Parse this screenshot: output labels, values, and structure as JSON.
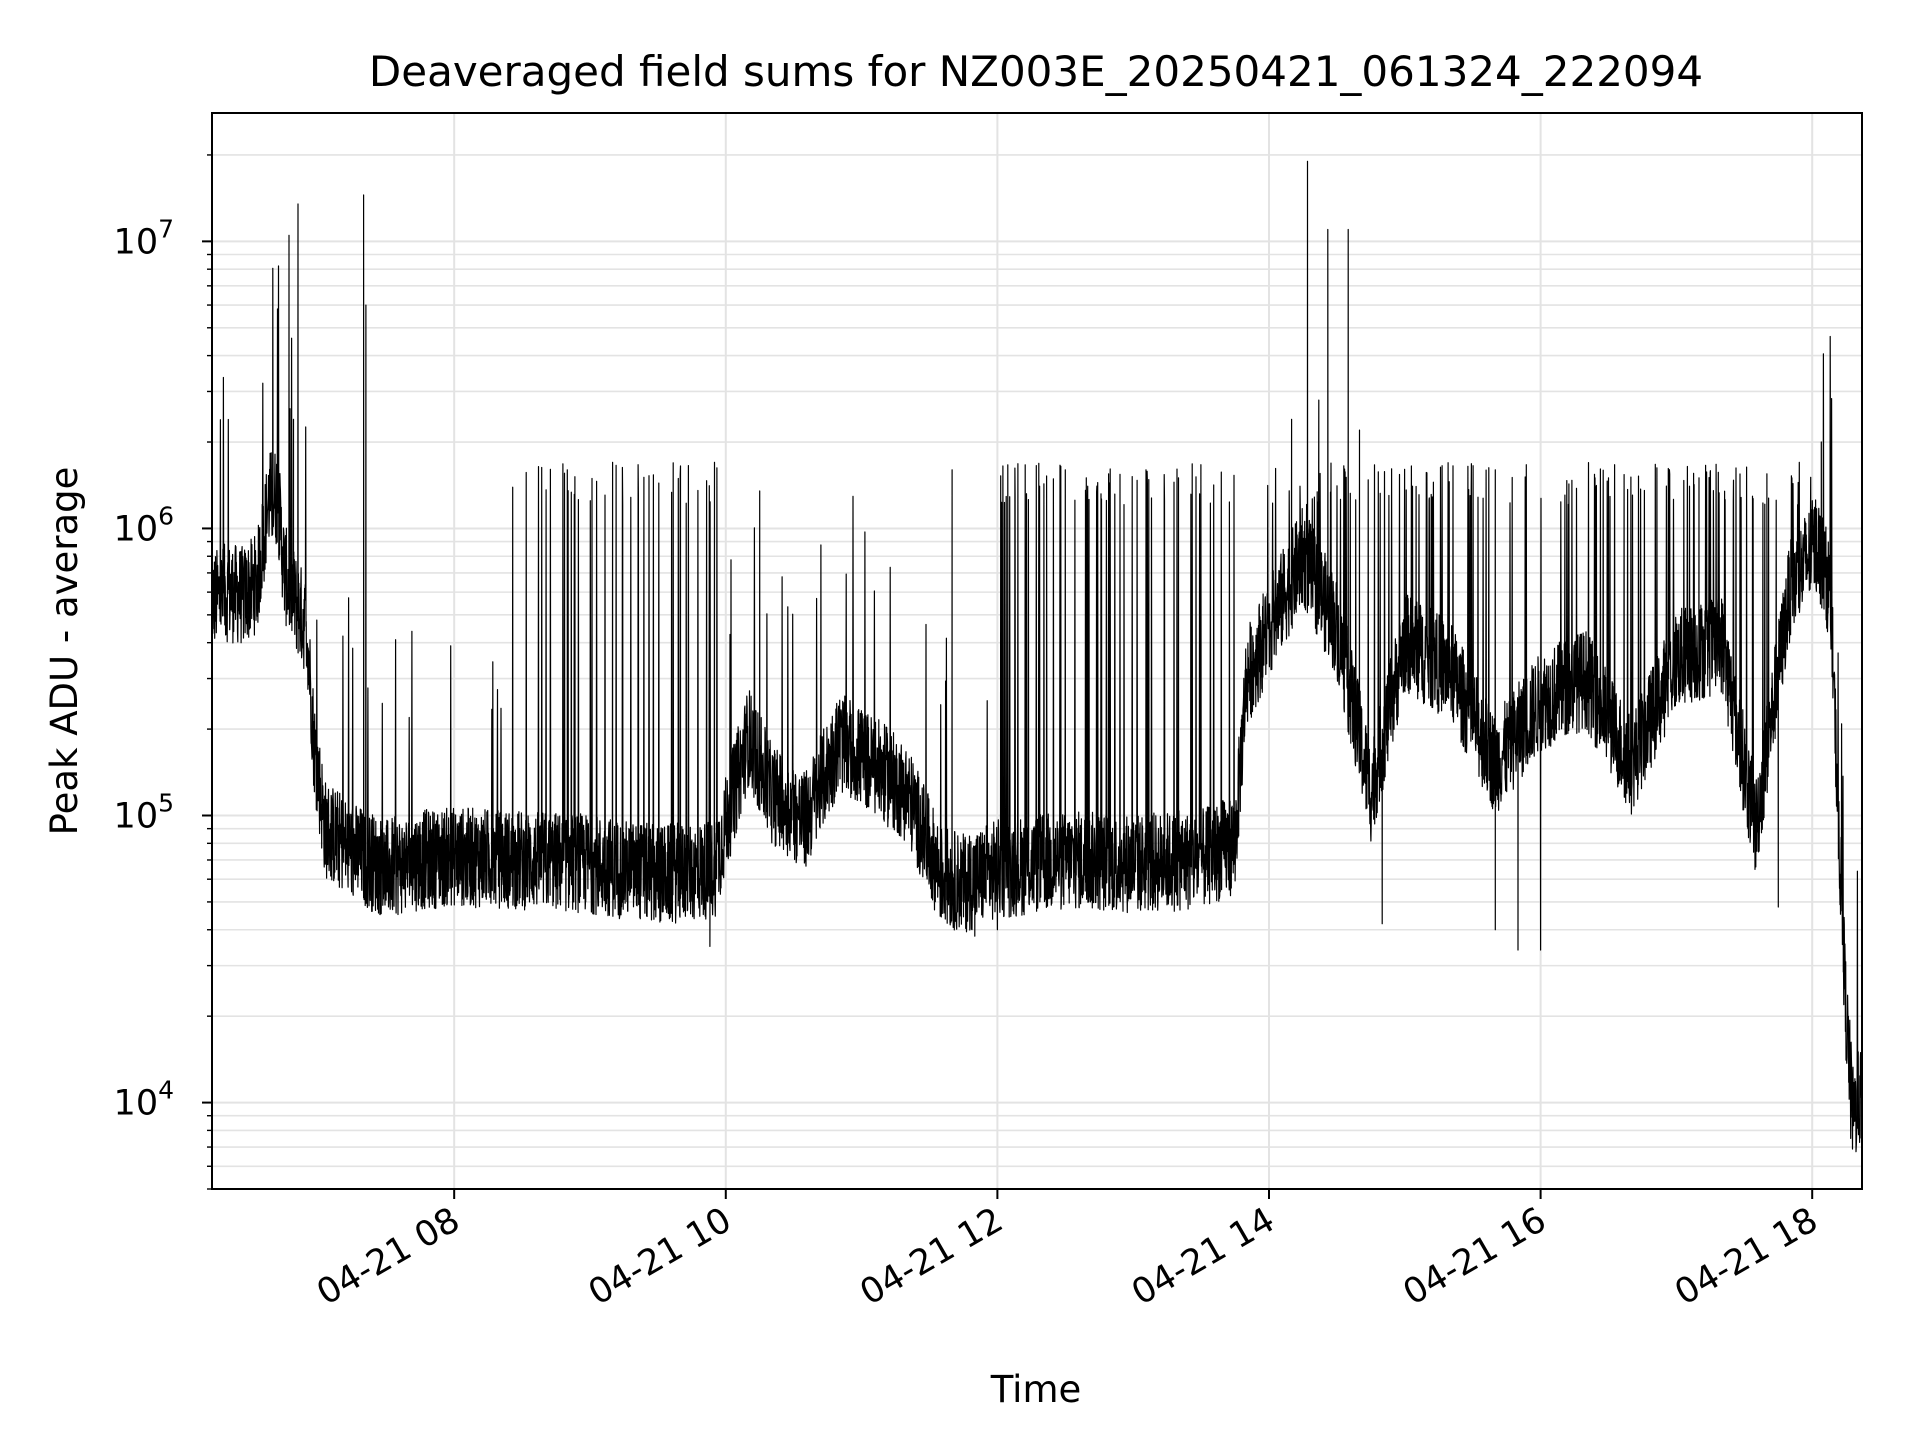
{
  "chart_data": {
    "type": "line",
    "title": "Deaveraged field sums for NZ003E_20250421_061324_222094",
    "xlabel": "Time",
    "ylabel": "Peak ADU - average",
    "yscale": "log",
    "ylim": [
      5000,
      28000000
    ],
    "xlim": [
      "04-21 06:13",
      "04-21 18:22"
    ],
    "grid": true,
    "line_color": "#000000",
    "x_ticks": [
      "04-21 08",
      "04-21 10",
      "04-21 12",
      "04-21 14",
      "04-21 16",
      "04-21 18"
    ],
    "y_ticks": [
      {
        "base": "10",
        "exp": "4",
        "value": 10000
      },
      {
        "base": "10",
        "exp": "5",
        "value": 100000
      },
      {
        "base": "10",
        "exp": "6",
        "value": 1000000
      },
      {
        "base": "10",
        "exp": "7",
        "value": 10000000
      }
    ],
    "series": [
      {
        "points": [
          [
            "04-21 06:13",
            560000
          ],
          [
            "04-21 06:20",
            600000
          ],
          [
            "04-21 06:27",
            580000
          ],
          [
            "04-21 06:33",
            650000
          ],
          [
            "04-21 06:38",
            1250000
          ],
          [
            "04-21 06:42",
            1300000
          ],
          [
            "04-21 06:45",
            700000
          ],
          [
            "04-21 06:50",
            550000
          ],
          [
            "04-21 06:55",
            450000
          ],
          [
            "04-21 06:58",
            180000
          ],
          [
            "04-21 07:03",
            90000
          ],
          [
            "04-21 07:15",
            75000
          ],
          [
            "04-21 07:30",
            65000
          ],
          [
            "04-21 07:45",
            70000
          ],
          [
            "04-21 08:00",
            72000
          ],
          [
            "04-21 08:30",
            70000
          ],
          [
            "04-21 09:00",
            68000
          ],
          [
            "04-21 09:30",
            62000
          ],
          [
            "04-21 09:55",
            65000
          ],
          [
            "04-21 10:10",
            190000
          ],
          [
            "04-21 10:20",
            120000
          ],
          [
            "04-21 10:35",
            95000
          ],
          [
            "04-21 10:50",
            180000
          ],
          [
            "04-21 11:05",
            150000
          ],
          [
            "04-21 11:20",
            120000
          ],
          [
            "04-21 11:35",
            62000
          ],
          [
            "04-21 11:45",
            58000
          ],
          [
            "04-21 12:00",
            65000
          ],
          [
            "04-21 12:30",
            70000
          ],
          [
            "04-21 13:00",
            68000
          ],
          [
            "04-21 13:30",
            70000
          ],
          [
            "04-21 13:45",
            80000
          ],
          [
            "04-21 13:50",
            300000
          ],
          [
            "04-21 14:00",
            450000
          ],
          [
            "04-21 14:15",
            800000
          ],
          [
            "04-21 14:30",
            450000
          ],
          [
            "04-21 14:45",
            120000
          ],
          [
            "04-21 15:00",
            400000
          ],
          [
            "04-21 15:20",
            320000
          ],
          [
            "04-21 15:40",
            150000
          ],
          [
            "04-21 16:00",
            250000
          ],
          [
            "04-21 16:20",
            300000
          ],
          [
            "04-21 16:40",
            150000
          ],
          [
            "04-21 17:00",
            350000
          ],
          [
            "04-21 17:20",
            400000
          ],
          [
            "04-21 17:35",
            90000
          ],
          [
            "04-21 17:50",
            600000
          ],
          [
            "04-21 18:02",
            900000
          ],
          [
            "04-21 18:08",
            600000
          ],
          [
            "04-21 18:12",
            80000
          ],
          [
            "04-21 18:15",
            20000
          ],
          [
            "04-21 18:18",
            9000
          ],
          [
            "04-21 18:22",
            11000
          ]
        ],
        "spikes": [
          [
            "04-21 06:47",
            10500000
          ],
          [
            "04-21 06:49",
            2400000
          ],
          [
            "04-21 06:51",
            13500000
          ],
          [
            "04-21 07:20",
            14500000
          ],
          [
            "04-21 07:21",
            6000000
          ],
          [
            "04-21 08:50",
            1600000
          ],
          [
            "04-21 09:10",
            1700000
          ],
          [
            "04-21 09:40",
            1650000
          ],
          [
            "04-21 09:55",
            1700000
          ],
          [
            "04-21 10:15",
            1350000
          ],
          [
            "04-21 11:40",
            1600000
          ],
          [
            "04-21 12:30",
            1600000
          ],
          [
            "04-21 13:20",
            1500000
          ],
          [
            "04-21 14:10",
            2400000
          ],
          [
            "04-21 14:17",
            19000000
          ],
          [
            "04-21 14:22",
            2800000
          ],
          [
            "04-21 14:26",
            11000000
          ],
          [
            "04-21 14:35",
            11000000
          ],
          [
            "04-21 14:40",
            2200000
          ],
          [
            "04-21 15:05",
            1400000
          ],
          [
            "04-21 15:40",
            1600000
          ],
          [
            "04-21 16:30",
            1500000
          ],
          [
            "04-21 17:10",
            1500000
          ],
          [
            "04-21 17:40",
            1550000
          ],
          [
            "04-21 18:04",
            2000000
          ],
          [
            "04-21 18:08",
            3300000
          ]
        ],
        "dips": [
          [
            "04-21 09:53",
            35000
          ],
          [
            "04-21 11:50",
            38000
          ],
          [
            "04-21 12:00",
            40000
          ],
          [
            "04-21 14:50",
            42000
          ],
          [
            "04-21 15:40",
            40000
          ],
          [
            "04-21 15:50",
            34000
          ],
          [
            "04-21 16:00",
            34000
          ],
          [
            "04-21 17:45",
            48000
          ],
          [
            "04-21 18:17",
            7500
          ]
        ]
      }
    ]
  }
}
